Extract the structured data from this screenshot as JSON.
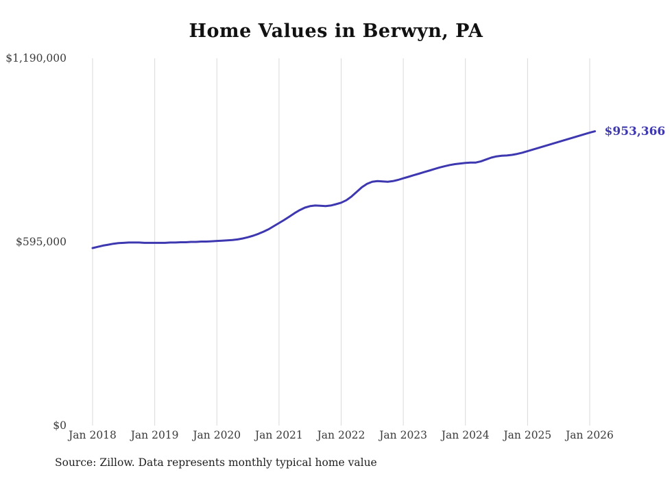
{
  "chart_data": {
    "type": "line",
    "title": "Home Values in Berwyn, PA",
    "xlabel": "",
    "ylabel": "",
    "ylim": [
      0,
      1190000
    ],
    "grid": "vertical-only",
    "legend": "none",
    "line_color": "#3d37b0",
    "gridline_color": "#d9d9d9",
    "end_label": "$953,366",
    "end_value": 953366,
    "source_note": "Source: Zillow. Data represents monthly typical home value",
    "y_ticks": [
      {
        "label": "$0",
        "value": 0
      },
      {
        "label": "$595,000",
        "value": 595000
      },
      {
        "label": "$1,190,000",
        "value": 1190000
      }
    ],
    "x_ticks": [
      "Jan 2018",
      "Jan 2019",
      "Jan 2020",
      "Jan 2021",
      "Jan 2022",
      "Jan 2023",
      "Jan 2024",
      "Jan 2025",
      "Jan 2026"
    ],
    "series": [
      {
        "name": "Monthly typical home value (USD)",
        "x_start": "2018-01",
        "x_end": "2026-02",
        "values": [
          575000,
          579000,
          583000,
          586000,
          589000,
          591000,
          592000,
          593000,
          593000,
          593000,
          592000,
          592000,
          592000,
          592000,
          592000,
          593000,
          593000,
          594000,
          594000,
          595000,
          595000,
          596000,
          596000,
          597000,
          598000,
          599000,
          600000,
          601000,
          603000,
          606000,
          610000,
          615000,
          621000,
          628000,
          636000,
          646000,
          656000,
          666000,
          677000,
          688000,
          698000,
          706000,
          711000,
          713000,
          712000,
          711000,
          713000,
          717000,
          722000,
          730000,
          742000,
          757000,
          772000,
          783000,
          790000,
          792000,
          791000,
          790000,
          792000,
          796000,
          801000,
          806000,
          811000,
          816000,
          821000,
          826000,
          831000,
          836000,
          840000,
          844000,
          847000,
          849000,
          851000,
          852000,
          852000,
          856000,
          862000,
          868000,
          872000,
          874000,
          875000,
          877000,
          880000,
          884000,
          889000,
          894000,
          899000,
          904000,
          909000,
          914000,
          919000,
          924000,
          929000,
          934000,
          939000,
          944000,
          949000,
          953366
        ]
      }
    ]
  }
}
